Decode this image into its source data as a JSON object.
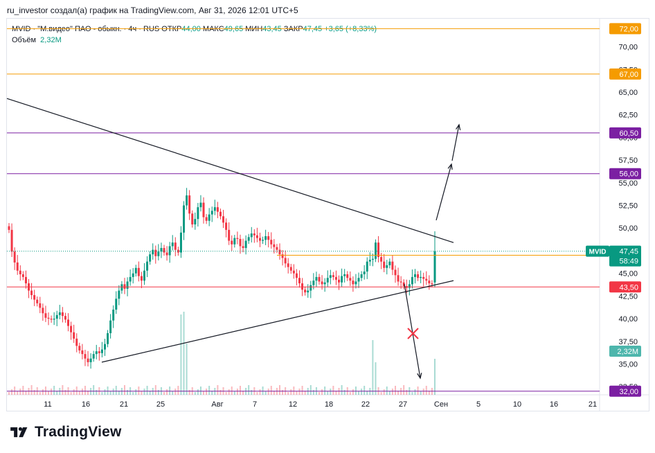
{
  "header": {
    "caption": "ru_investor создал(а) график на TradingView.com, Авг 31, 2026 12:01 UTC+5"
  },
  "legend": {
    "title": "MVID · \"М.видео\" ПАО - обыкн. · 4ч · RUS",
    "open_label": "ОТКР",
    "open": "44,00",
    "high_label": "МАКС",
    "high": "49,65",
    "low_label": "МИН",
    "low": "43,45",
    "close_label": "ЗАКР",
    "close": "47,45",
    "change": "+3,65 (+8,33%)",
    "volume_label": "Объём",
    "volume": "2,32М"
  },
  "footer": {
    "brand": "TradingView",
    "logo": "tradingview-logo-icon"
  },
  "colors": {
    "up": "#089981",
    "down": "#f23645",
    "orange": "#f59b00",
    "purple": "#7b1fa2",
    "red_line": "#f23645"
  },
  "chart_data": {
    "type": "candlestick",
    "symbol": "MVID",
    "y_ticks": [
      "70,00",
      "67,50",
      "65,00",
      "62,50",
      "60,00",
      "57,50",
      "55,00",
      "52,50",
      "50,00",
      "47,50",
      "45,00",
      "42,50",
      "40,00",
      "37,50",
      "35,00",
      "32,50"
    ],
    "y_range": [
      31.6,
      73.1
    ],
    "x_ticks": [
      "11",
      "16",
      "21",
      "25",
      "Авг",
      "7",
      "12",
      "18",
      "22",
      "27",
      "Сен",
      "5",
      "10",
      "16",
      "21"
    ],
    "levels": [
      {
        "label": "72,00",
        "value": 72.0,
        "color": "orange"
      },
      {
        "label": "67,00",
        "value": 67.0,
        "color": "orange"
      },
      {
        "label": "60,50",
        "value": 60.5,
        "color": "purple"
      },
      {
        "label": "56,00",
        "value": 56.0,
        "color": "purple"
      },
      {
        "label": "43,50",
        "value": 43.5,
        "color": "red"
      },
      {
        "label": "32,00",
        "value": 32.0,
        "color": "purple"
      }
    ],
    "short_levels": [
      {
        "label": "47,00",
        "value": 47.0,
        "color": "orange"
      }
    ],
    "price_tag": {
      "symbol": "MVID",
      "price": "47,45",
      "countdown": "58:49",
      "value": 47.45
    },
    "volume_tag": "2,32М",
    "candles_4h_close": [
      49.8,
      47.4,
      46.2,
      45.3,
      44.9,
      44.6,
      43.9,
      43.1,
      42.6,
      42.1,
      41.7,
      41.2,
      40.6,
      40.1,
      40.0,
      39.9,
      40.0,
      40.4,
      40.7,
      40.3,
      39.9,
      39.2,
      38.5,
      37.8,
      37.0,
      36.5,
      36.1,
      35.6,
      35.2,
      35.6,
      36.1,
      36.4,
      36.2,
      36.6,
      37.2,
      38.4,
      39.8,
      41.0,
      42.2,
      43.1,
      43.8,
      43.3,
      44.1,
      44.6,
      45.0,
      45.6,
      44.7,
      44.2,
      45.3,
      46.3,
      47.1,
      47.6,
      46.9,
      47.4,
      47.8,
      47.3,
      47.0,
      48.0,
      48.4,
      47.6,
      47.3,
      49.5,
      52.5,
      53.6,
      51.6,
      50.4,
      51.0,
      52.3,
      52.8,
      51.2,
      50.8,
      51.5,
      51.9,
      52.3,
      51.8,
      51.3,
      50.6,
      49.8,
      48.6,
      48.2,
      48.9,
      48.8,
      48.0,
      47.8,
      48.6,
      49.0,
      49.4,
      49.2,
      48.9,
      48.6,
      48.7,
      49.1,
      48.7,
      48.2,
      47.9,
      47.6,
      47.1,
      46.7,
      46.1,
      45.7,
      45.3,
      45.0,
      44.5,
      43.9,
      43.2,
      42.9,
      43.1,
      43.7,
      44.2,
      44.6,
      44.1,
      43.8,
      44.0,
      44.5,
      44.8,
      44.6,
      44.3,
      44.0,
      44.7,
      44.9,
      44.5,
      44.2,
      43.8,
      44.1,
      44.5,
      44.9,
      45.2,
      46.3,
      46.5,
      46.6,
      48.4,
      46.8,
      46.3,
      45.6,
      45.9,
      46.3,
      45.4,
      44.8,
      44.1,
      44.0,
      43.6,
      43.4,
      43.8,
      44.6,
      44.9,
      44.5,
      44.6,
      44.4,
      44.2,
      43.9,
      43.8,
      47.45
    ],
    "drawn_lines": [
      {
        "type": "trendline",
        "from": [
          "~8 июл",
          64.3
        ],
        "to": [
          "~30 авг",
          48.4
        ]
      },
      {
        "type": "trendline",
        "from": [
          "~18 июл",
          35.2
        ],
        "to": [
          "~30 авг",
          44.2
        ]
      }
    ],
    "annotations": [
      "arrow up to 56,00",
      "arrow up to 60,50",
      "arrow down to 32,00",
      "red cross"
    ]
  }
}
